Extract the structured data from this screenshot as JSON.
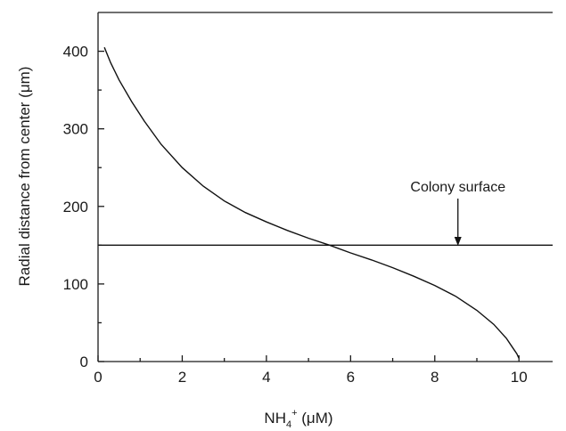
{
  "chart_data": {
    "type": "line",
    "title": "",
    "xlabel": {
      "prefix": "NH",
      "sub": "4",
      "sup": "+",
      "unit": " (μM)"
    },
    "ylabel": "Radial distance from center (μm)",
    "xlim": [
      0,
      10.8
    ],
    "ylim": [
      0,
      450
    ],
    "x_ticks": [
      0,
      2,
      4,
      6,
      8,
      10
    ],
    "x_tick_labels": [
      "0",
      "2",
      "4",
      "6",
      "8",
      "10"
    ],
    "x_minor_ticks": [
      1,
      3,
      5,
      7,
      9
    ],
    "y_ticks": [
      0,
      100,
      200,
      300,
      400
    ],
    "y_tick_labels": [
      "0",
      "100",
      "200",
      "300",
      "400"
    ],
    "y_minor_ticks": [
      50,
      150,
      250,
      350
    ],
    "grid": false,
    "series": [
      {
        "x": [
          0.15,
          0.3,
          0.5,
          0.8,
          1.1,
          1.5,
          2.0,
          2.5,
          3.0,
          3.5,
          4.0,
          4.5,
          5.0,
          5.5,
          6.0,
          6.5,
          7.0,
          7.5,
          8.0,
          8.5,
          9.0,
          9.4,
          9.7,
          9.85,
          9.95,
          10.0
        ],
        "y": [
          405,
          385,
          363,
          335,
          310,
          280,
          250,
          226,
          207,
          192,
          180,
          169,
          159,
          150,
          140,
          131,
          121,
          110,
          98,
          84,
          66,
          48,
          30,
          18,
          10,
          4
        ]
      }
    ],
    "reference_line": {
      "y": 150
    },
    "annotation": {
      "text": "Colony surface",
      "x": 8.55,
      "y": 155
    }
  }
}
